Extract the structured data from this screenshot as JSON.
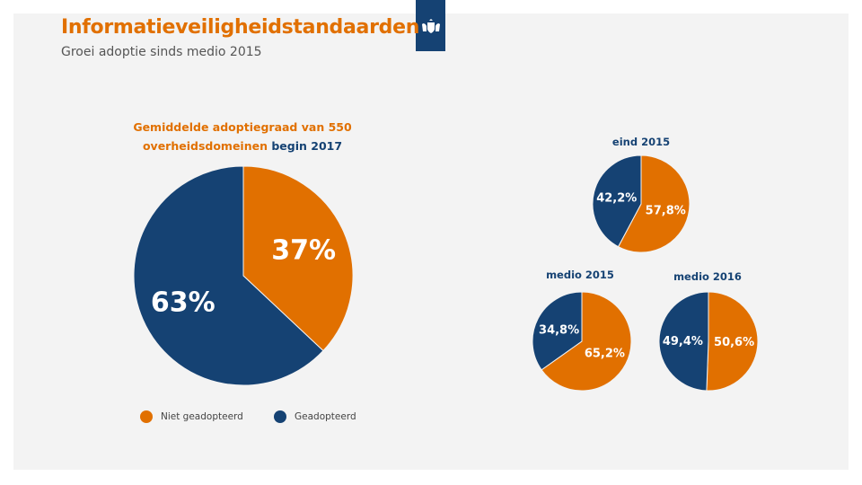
{
  "header": {
    "title": "Informatieveiligheidstandaarden",
    "subtitle": "Groei adoptie sinds medio 2015"
  },
  "colors": {
    "orange": "#e17000",
    "navy": "#154273"
  },
  "chart_data": [
    {
      "type": "pie",
      "title_part1": "Gemiddelde adoptiegraad van 550 overheidsdomeinen",
      "title_part2": "begin 2017",
      "slices": [
        {
          "label": "Niet geadopteerd",
          "value": 37,
          "text": "37%"
        },
        {
          "label": "Geadopteerd",
          "value": 63,
          "text": "63%"
        }
      ]
    },
    {
      "type": "pie",
      "title": "eind 2015",
      "slices": [
        {
          "label": "Niet geadopteerd",
          "value": 57.8,
          "text": "57,8%"
        },
        {
          "label": "Geadopteerd",
          "value": 42.2,
          "text": "42,2%"
        }
      ]
    },
    {
      "type": "pie",
      "title": "medio 2015",
      "slices": [
        {
          "label": "Niet geadopteerd",
          "value": 65.2,
          "text": "65,2%"
        },
        {
          "label": "Geadopteerd",
          "value": 34.8,
          "text": "34,8%"
        }
      ]
    },
    {
      "type": "pie",
      "title": "medio 2016",
      "slices": [
        {
          "label": "Niet geadopteerd",
          "value": 50.6,
          "text": "50,6%"
        },
        {
          "label": "Geadopteerd",
          "value": 49.4,
          "text": "49,4%"
        }
      ]
    }
  ],
  "legend": [
    {
      "label": "Niet geadopteerd",
      "color": "#e17000"
    },
    {
      "label": "Geadopteerd",
      "color": "#154273"
    }
  ]
}
